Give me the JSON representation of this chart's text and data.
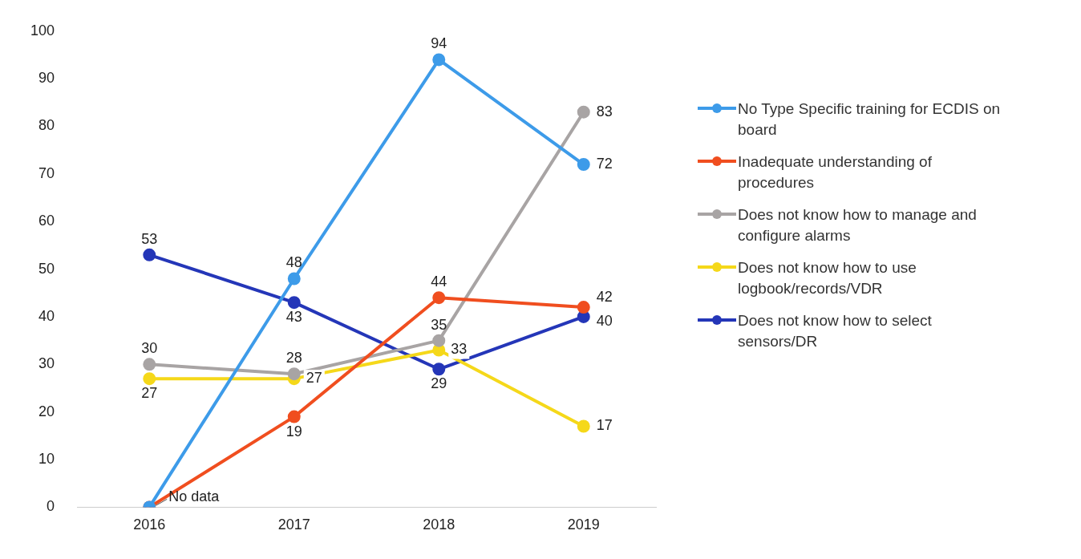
{
  "chart_data": {
    "type": "line",
    "categories": [
      "2016",
      "2017",
      "2018",
      "2019"
    ],
    "series": [
      {
        "name": "No Type Specific training for ECDIS on board",
        "color": "#3d9be9",
        "values": [
          0,
          48,
          94,
          72
        ],
        "value_labels": [
          null,
          "48",
          "94",
          "72"
        ]
      },
      {
        "name": "Inadequate understanding of procedures",
        "color": "#f04e1f",
        "values": [
          0,
          19,
          44,
          42
        ],
        "value_labels": [
          null,
          "19",
          "44",
          "42"
        ]
      },
      {
        "name": "Does not know how to manage and configure alarms",
        "color": "#a8a4a4",
        "values": [
          30,
          28,
          35,
          83
        ],
        "value_labels": [
          "30",
          "28",
          "35",
          "83"
        ]
      },
      {
        "name": "Does not know how to use logbook/records/VDR",
        "color": "#f5d81a",
        "values": [
          27,
          27,
          33,
          17
        ],
        "value_labels": [
          "27",
          "27",
          "33",
          "17"
        ]
      },
      {
        "name": "Does not know how to select sensors/DR",
        "color": "#2436b8",
        "values": [
          53,
          43,
          29,
          40
        ],
        "value_labels": [
          "53",
          "43",
          "29",
          "40"
        ]
      }
    ],
    "ylim": [
      0,
      100
    ],
    "yticks": [
      0,
      10,
      20,
      30,
      40,
      50,
      60,
      70,
      80,
      90,
      100
    ],
    "grid": false,
    "legend": "right",
    "marker": "circle",
    "line_style": "solid",
    "annotations": [
      {
        "text": "No data",
        "x": "2016",
        "y": 0
      }
    ]
  }
}
